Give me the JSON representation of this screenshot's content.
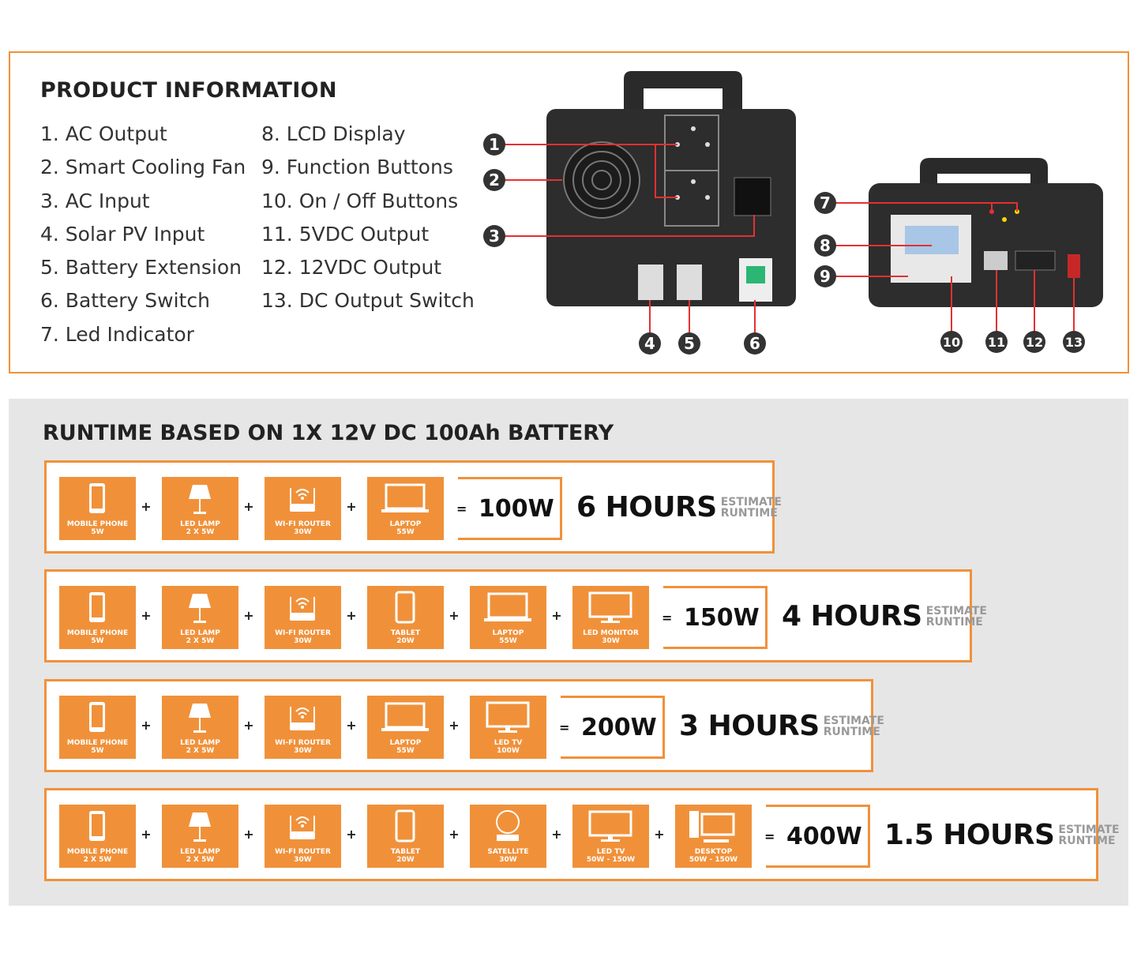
{
  "product_info": {
    "title": "PRODUCT INFORMATION",
    "items_left": [
      "1. AC Output",
      "2. Smart Cooling Fan",
      "3. AC Input",
      "4. Solar PV Input",
      "5. Battery Extension",
      "6. Battery Switch",
      "7. Led Indicator"
    ],
    "items_right": [
      "8. LCD Display",
      "9. Function Buttons",
      "10. On / Off Buttons",
      "11. 5VDC Output",
      "12. 12VDC Output",
      "13. DC Output Switch"
    ],
    "callouts": [
      "1",
      "2",
      "3",
      "4",
      "5",
      "6",
      "7",
      "8",
      "9",
      "10",
      "11",
      "12",
      "13"
    ]
  },
  "runtime": {
    "title": "RUNTIME BASED ON 1X 12V DC 100Ah BATTERY",
    "estimate_label": [
      "ESTIMATE",
      "RUNTIME"
    ],
    "accent": "#f0913a",
    "rows": [
      {
        "devices": [
          [
            "mobile-phone",
            "MOBILE PHONE",
            "5W"
          ],
          [
            "lamp",
            "LED LAMP",
            "2 X 5W"
          ],
          [
            "router",
            "WI-FI ROUTER",
            "30W"
          ],
          [
            "laptop",
            "LAPTOP",
            "55W"
          ]
        ],
        "total": "100W",
        "hours": "6 HOURS"
      },
      {
        "devices": [
          [
            "mobile-phone",
            "MOBILE PHONE",
            "5W"
          ],
          [
            "lamp",
            "LED LAMP",
            "2 X 5W"
          ],
          [
            "router",
            "WI-FI ROUTER",
            "30W"
          ],
          [
            "tablet",
            "TABLET",
            "20W"
          ],
          [
            "laptop",
            "LAPTOP",
            "55W"
          ],
          [
            "monitor",
            "LED MONITOR",
            "30W"
          ]
        ],
        "total": "150W",
        "hours": "4 HOURS"
      },
      {
        "devices": [
          [
            "mobile-phone",
            "MOBILE PHONE",
            "5W"
          ],
          [
            "lamp",
            "LED LAMP",
            "2 X 5W"
          ],
          [
            "router",
            "WI-FI ROUTER",
            "30W"
          ],
          [
            "laptop",
            "LAPTOP",
            "55W"
          ],
          [
            "monitor",
            "LED TV",
            "100W"
          ]
        ],
        "total": "200W",
        "hours": "3 HOURS"
      },
      {
        "devices": [
          [
            "mobile-phone",
            "MOBILE PHONE",
            "2 X 5W"
          ],
          [
            "lamp",
            "LED LAMP",
            "2 X 5W"
          ],
          [
            "router",
            "WI-FI ROUTER",
            "30W"
          ],
          [
            "tablet",
            "TABLET",
            "20W"
          ],
          [
            "satellite",
            "SATELLITE",
            "30W"
          ],
          [
            "monitor",
            "LED TV",
            "50W - 150W"
          ],
          [
            "desktop",
            "DESKTOP",
            "50W - 150W"
          ]
        ],
        "total": "400W",
        "hours": "1.5 HOURS"
      }
    ]
  }
}
